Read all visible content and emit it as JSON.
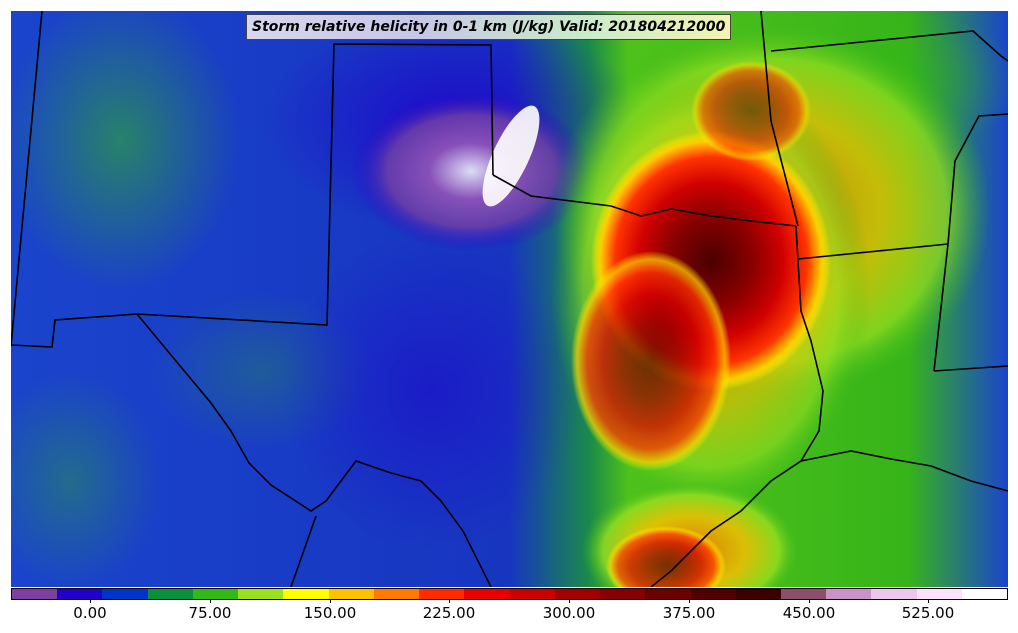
{
  "title": "Storm relative helicity in 0-1 km (J/kg) Valid: 201804212000",
  "colorbar": {
    "colors": [
      "#7b3f9e",
      "#2200cc",
      "#0033cc",
      "#0a8f3a",
      "#33b81a",
      "#99e020",
      "#ffff00",
      "#ffc000",
      "#ff7a00",
      "#ff2a00",
      "#e60000",
      "#c80000",
      "#a00000",
      "#860000",
      "#6a0000",
      "#500000",
      "#3a0000",
      "#8a4f6a",
      "#c993c9",
      "#ecc6ec",
      "#fbe4fb",
      "#ffffff"
    ],
    "tick_labels": [
      "0.00",
      "75.00",
      "150.00",
      "225.00",
      "300.00",
      "375.00",
      "450.00",
      "525.00"
    ]
  }
}
